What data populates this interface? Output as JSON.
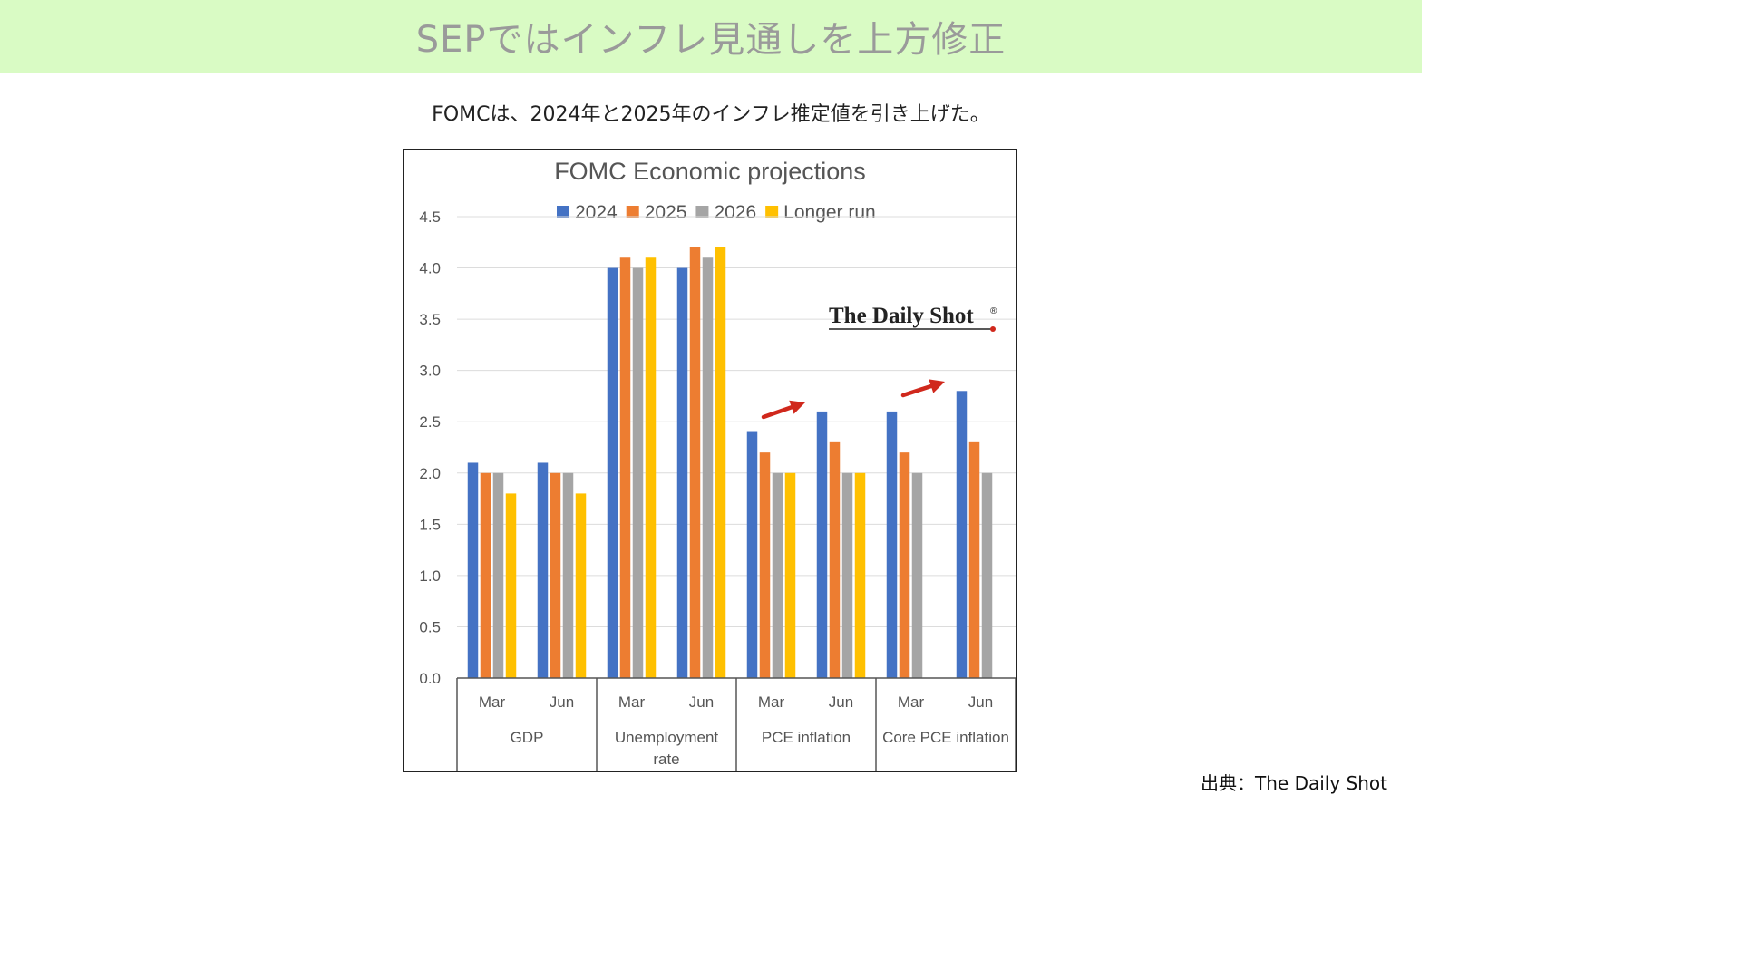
{
  "header": {
    "title": "SEPではインフレ見通しを上方修正",
    "subtitle": "FOMCは、2024年と2025年のインフレ推定値を引き上げた。"
  },
  "footer": {
    "source": "出典：The Daily Shot"
  },
  "watermark": {
    "text": "The Daily Shot®"
  },
  "colors": {
    "banner_bg": "#d9fbc4",
    "s2024": "#4472c4",
    "s2025": "#ed7d31",
    "s2026": "#a5a5a5",
    "longer": "#ffc000",
    "arrow": "#d0281c"
  },
  "chart_data": {
    "type": "bar",
    "title": "FOMC Economic projections",
    "ylim": [
      0,
      4.5
    ],
    "yticks": [
      "0.0",
      "0.5",
      "1.0",
      "1.5",
      "2.0",
      "2.5",
      "3.0",
      "3.5",
      "4.0",
      "4.5"
    ],
    "grid": true,
    "legend_position": "top",
    "groups": [
      {
        "label": "GDP",
        "label_lines": [
          "GDP"
        ],
        "subcategories": [
          "Mar",
          "Jun"
        ]
      },
      {
        "label": "Unemployment rate",
        "label_lines": [
          "Unemployment",
          "rate"
        ],
        "subcategories": [
          "Mar",
          "Jun"
        ]
      },
      {
        "label": "PCE inflation",
        "label_lines": [
          "PCE inflation"
        ],
        "subcategories": [
          "Mar",
          "Jun"
        ]
      },
      {
        "label": "Core PCE inflation",
        "label_lines": [
          "Core PCE inflation"
        ],
        "subcategories": [
          "Mar",
          "Jun"
        ]
      }
    ],
    "series": [
      {
        "name": "2024",
        "values": [
          2.1,
          2.1,
          4.0,
          4.0,
          2.4,
          2.6,
          2.6,
          2.8
        ]
      },
      {
        "name": "2025",
        "values": [
          2.0,
          2.0,
          4.1,
          4.2,
          2.2,
          2.3,
          2.2,
          2.3
        ]
      },
      {
        "name": "2026",
        "values": [
          2.0,
          2.0,
          4.0,
          4.1,
          2.0,
          2.0,
          2.0,
          2.0
        ]
      },
      {
        "name": "Longer run",
        "values": [
          1.8,
          1.8,
          4.1,
          4.2,
          2.0,
          2.0,
          null,
          null
        ]
      }
    ],
    "annotations": [
      {
        "type": "arrow",
        "direction": "up",
        "near": "PCE inflation"
      },
      {
        "type": "arrow",
        "direction": "up",
        "near": "Core PCE inflation"
      }
    ]
  }
}
